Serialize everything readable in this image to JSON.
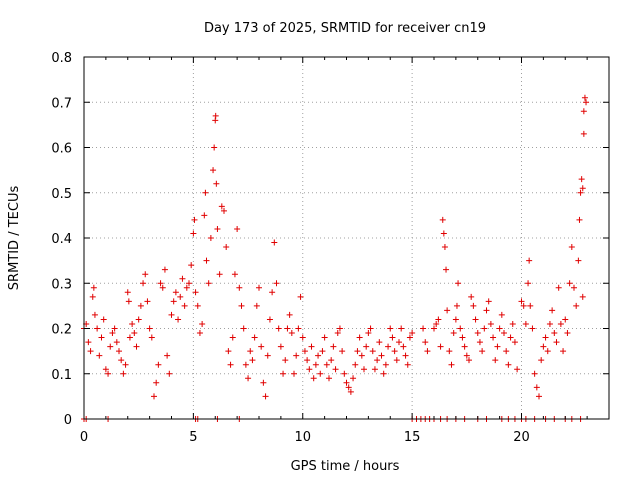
{
  "chart_data": {
    "type": "scatter",
    "title": "Day 173 of 2025, SRMTID for receiver cn19",
    "xlabel": "GPS time / hours",
    "ylabel": "SRMTID / TECUs",
    "xlim": [
      0,
      24
    ],
    "ylim": [
      0,
      0.8
    ],
    "xticks": [
      0,
      5,
      10,
      15,
      20
    ],
    "yticks": [
      0,
      0.1,
      0.2,
      0.3,
      0.4,
      0.5,
      0.6,
      0.7,
      0.8
    ],
    "xtick_labels": [
      "0",
      "5",
      "10",
      "15",
      "20"
    ],
    "ytick_labels": [
      "0",
      "0.1",
      "0.2",
      "0.3",
      "0.4",
      "0.5",
      "0.6",
      "0.7",
      "0.8"
    ],
    "grid": true,
    "marker": "+",
    "color": "#e00000",
    "series": [
      {
        "name": "SRMTID",
        "points": [
          [
            0.0,
            0.2
          ],
          [
            0.1,
            0.21
          ],
          [
            0.2,
            0.17
          ],
          [
            0.3,
            0.15
          ],
          [
            0.4,
            0.27
          ],
          [
            0.45,
            0.29
          ],
          [
            0.5,
            0.23
          ],
          [
            0.6,
            0.2
          ],
          [
            0.7,
            0.14
          ],
          [
            0.8,
            0.18
          ],
          [
            0.9,
            0.22
          ],
          [
            1.0,
            0.11
          ],
          [
            1.1,
            0.1
          ],
          [
            1.2,
            0.16
          ],
          [
            1.3,
            0.19
          ],
          [
            1.4,
            0.2
          ],
          [
            1.5,
            0.17
          ],
          [
            1.6,
            0.15
          ],
          [
            1.7,
            0.13
          ],
          [
            1.8,
            0.1
          ],
          [
            1.9,
            0.12
          ],
          [
            2.0,
            0.28
          ],
          [
            2.05,
            0.26
          ],
          [
            2.1,
            0.18
          ],
          [
            2.2,
            0.21
          ],
          [
            2.3,
            0.19
          ],
          [
            2.4,
            0.16
          ],
          [
            2.5,
            0.22
          ],
          [
            2.6,
            0.25
          ],
          [
            2.7,
            0.3
          ],
          [
            2.8,
            0.32
          ],
          [
            2.9,
            0.26
          ],
          [
            3.0,
            0.2
          ],
          [
            3.1,
            0.18
          ],
          [
            3.2,
            0.05
          ],
          [
            3.3,
            0.08
          ],
          [
            3.4,
            0.12
          ],
          [
            3.5,
            0.3
          ],
          [
            3.6,
            0.29
          ],
          [
            3.7,
            0.33
          ],
          [
            3.8,
            0.14
          ],
          [
            3.9,
            0.1
          ],
          [
            4.0,
            0.23
          ],
          [
            4.1,
            0.26
          ],
          [
            4.2,
            0.28
          ],
          [
            4.3,
            0.22
          ],
          [
            4.4,
            0.27
          ],
          [
            4.5,
            0.31
          ],
          [
            4.6,
            0.25
          ],
          [
            4.7,
            0.29
          ],
          [
            4.8,
            0.3
          ],
          [
            4.9,
            0.34
          ],
          [
            5.0,
            0.41
          ],
          [
            5.05,
            0.44
          ],
          [
            5.1,
            0.28
          ],
          [
            5.2,
            0.25
          ],
          [
            5.3,
            0.19
          ],
          [
            5.4,
            0.21
          ],
          [
            5.5,
            0.45
          ],
          [
            5.55,
            0.5
          ],
          [
            5.6,
            0.35
          ],
          [
            5.7,
            0.3
          ],
          [
            5.8,
            0.4
          ],
          [
            5.9,
            0.55
          ],
          [
            5.95,
            0.6
          ],
          [
            6.0,
            0.66
          ],
          [
            6.02,
            0.67
          ],
          [
            6.05,
            0.52
          ],
          [
            6.1,
            0.42
          ],
          [
            6.2,
            0.32
          ],
          [
            6.3,
            0.47
          ],
          [
            6.4,
            0.46
          ],
          [
            6.5,
            0.38
          ],
          [
            6.6,
            0.15
          ],
          [
            6.7,
            0.12
          ],
          [
            6.8,
            0.18
          ],
          [
            6.9,
            0.32
          ],
          [
            7.0,
            0.42
          ],
          [
            7.1,
            0.29
          ],
          [
            7.2,
            0.25
          ],
          [
            7.3,
            0.2
          ],
          [
            7.4,
            0.12
          ],
          [
            7.5,
            0.09
          ],
          [
            7.6,
            0.15
          ],
          [
            7.7,
            0.13
          ],
          [
            7.8,
            0.18
          ],
          [
            7.9,
            0.25
          ],
          [
            8.0,
            0.29
          ],
          [
            8.1,
            0.16
          ],
          [
            8.2,
            0.08
          ],
          [
            8.3,
            0.05
          ],
          [
            8.4,
            0.14
          ],
          [
            8.5,
            0.22
          ],
          [
            8.6,
            0.28
          ],
          [
            8.7,
            0.39
          ],
          [
            8.8,
            0.3
          ],
          [
            8.9,
            0.2
          ],
          [
            9.0,
            0.16
          ],
          [
            9.1,
            0.1
          ],
          [
            9.2,
            0.13
          ],
          [
            9.3,
            0.2
          ],
          [
            9.4,
            0.23
          ],
          [
            9.5,
            0.19
          ],
          [
            9.6,
            0.1
          ],
          [
            9.7,
            0.14
          ],
          [
            9.8,
            0.2
          ],
          [
            9.9,
            0.27
          ],
          [
            10.0,
            0.18
          ],
          [
            10.1,
            0.15
          ],
          [
            10.2,
            0.13
          ],
          [
            10.3,
            0.11
          ],
          [
            10.4,
            0.16
          ],
          [
            10.5,
            0.09
          ],
          [
            10.6,
            0.12
          ],
          [
            10.7,
            0.14
          ],
          [
            10.8,
            0.1
          ],
          [
            10.9,
            0.15
          ],
          [
            11.0,
            0.18
          ],
          [
            11.1,
            0.12
          ],
          [
            11.2,
            0.09
          ],
          [
            11.3,
            0.13
          ],
          [
            11.4,
            0.16
          ],
          [
            11.5,
            0.11
          ],
          [
            11.6,
            0.19
          ],
          [
            11.7,
            0.2
          ],
          [
            11.8,
            0.15
          ],
          [
            11.9,
            0.1
          ],
          [
            12.0,
            0.08
          ],
          [
            12.1,
            0.07
          ],
          [
            12.2,
            0.06
          ],
          [
            12.3,
            0.09
          ],
          [
            12.4,
            0.12
          ],
          [
            12.5,
            0.15
          ],
          [
            12.6,
            0.18
          ],
          [
            12.7,
            0.14
          ],
          [
            12.8,
            0.11
          ],
          [
            12.9,
            0.16
          ],
          [
            13.0,
            0.19
          ],
          [
            13.1,
            0.2
          ],
          [
            13.2,
            0.15
          ],
          [
            13.3,
            0.11
          ],
          [
            13.4,
            0.13
          ],
          [
            13.5,
            0.17
          ],
          [
            13.6,
            0.14
          ],
          [
            13.7,
            0.1
          ],
          [
            13.8,
            0.12
          ],
          [
            13.9,
            0.16
          ],
          [
            14.0,
            0.2
          ],
          [
            14.1,
            0.18
          ],
          [
            14.2,
            0.15
          ],
          [
            14.3,
            0.13
          ],
          [
            14.4,
            0.17
          ],
          [
            14.5,
            0.2
          ],
          [
            14.6,
            0.16
          ],
          [
            14.7,
            0.14
          ],
          [
            14.8,
            0.12
          ],
          [
            14.9,
            0.18
          ],
          [
            15.0,
            0.19
          ],
          [
            15.5,
            0.2
          ],
          [
            15.6,
            0.17
          ],
          [
            15.7,
            0.15
          ],
          [
            16.0,
            0.2
          ],
          [
            16.1,
            0.21
          ],
          [
            16.2,
            0.22
          ],
          [
            16.3,
            0.16
          ],
          [
            16.4,
            0.44
          ],
          [
            16.45,
            0.41
          ],
          [
            16.5,
            0.38
          ],
          [
            16.55,
            0.33
          ],
          [
            16.6,
            0.24
          ],
          [
            16.7,
            0.15
          ],
          [
            16.8,
            0.12
          ],
          [
            16.9,
            0.19
          ],
          [
            17.0,
            0.22
          ],
          [
            17.05,
            0.25
          ],
          [
            17.1,
            0.3
          ],
          [
            17.2,
            0.2
          ],
          [
            17.3,
            0.18
          ],
          [
            17.4,
            0.16
          ],
          [
            17.5,
            0.14
          ],
          [
            17.6,
            0.13
          ],
          [
            17.7,
            0.27
          ],
          [
            17.8,
            0.25
          ],
          [
            17.9,
            0.22
          ],
          [
            18.0,
            0.19
          ],
          [
            18.1,
            0.17
          ],
          [
            18.2,
            0.15
          ],
          [
            18.3,
            0.2
          ],
          [
            18.4,
            0.24
          ],
          [
            18.5,
            0.26
          ],
          [
            18.6,
            0.21
          ],
          [
            18.7,
            0.18
          ],
          [
            18.8,
            0.13
          ],
          [
            18.9,
            0.16
          ],
          [
            19.0,
            0.2
          ],
          [
            19.1,
            0.23
          ],
          [
            19.2,
            0.19
          ],
          [
            19.3,
            0.15
          ],
          [
            19.4,
            0.12
          ],
          [
            19.5,
            0.18
          ],
          [
            19.6,
            0.21
          ],
          [
            19.7,
            0.17
          ],
          [
            19.8,
            0.11
          ],
          [
            20.0,
            0.26
          ],
          [
            20.1,
            0.25
          ],
          [
            20.2,
            0.21
          ],
          [
            20.3,
            0.3
          ],
          [
            20.35,
            0.35
          ],
          [
            20.4,
            0.25
          ],
          [
            20.5,
            0.2
          ],
          [
            20.6,
            0.1
          ],
          [
            20.7,
            0.07
          ],
          [
            20.8,
            0.05
          ],
          [
            20.9,
            0.13
          ],
          [
            21.0,
            0.16
          ],
          [
            21.1,
            0.18
          ],
          [
            21.2,
            0.15
          ],
          [
            21.3,
            0.21
          ],
          [
            21.4,
            0.24
          ],
          [
            21.5,
            0.19
          ],
          [
            21.6,
            0.17
          ],
          [
            21.7,
            0.29
          ],
          [
            21.8,
            0.21
          ],
          [
            21.9,
            0.15
          ],
          [
            22.0,
            0.22
          ],
          [
            22.1,
            0.19
          ],
          [
            22.2,
            0.3
          ],
          [
            22.3,
            0.38
          ],
          [
            22.4,
            0.29
          ],
          [
            22.5,
            0.25
          ],
          [
            22.6,
            0.35
          ],
          [
            22.65,
            0.44
          ],
          [
            22.7,
            0.5
          ],
          [
            22.75,
            0.53
          ],
          [
            22.8,
            0.51
          ],
          [
            22.85,
            0.68
          ],
          [
            22.9,
            0.71
          ],
          [
            22.95,
            0.7
          ],
          [
            22.85,
            0.63
          ],
          [
            22.8,
            0.27
          ],
          [
            0.0,
            0.0
          ],
          [
            0.1,
            0.0
          ],
          [
            1.1,
            0.0
          ],
          [
            5.1,
            0.0
          ],
          [
            5.2,
            0.0
          ],
          [
            6.1,
            0.0
          ],
          [
            7.1,
            0.0
          ],
          [
            15.0,
            0.0
          ],
          [
            15.2,
            0.0
          ],
          [
            15.4,
            0.0
          ],
          [
            15.6,
            0.0
          ],
          [
            15.8,
            0.0
          ],
          [
            16.0,
            0.0
          ],
          [
            16.3,
            0.0
          ],
          [
            16.6,
            0.0
          ],
          [
            17.0,
            0.0
          ],
          [
            17.4,
            0.0
          ],
          [
            18.0,
            0.0
          ],
          [
            18.4,
            0.0
          ],
          [
            19.1,
            0.0
          ],
          [
            19.4,
            0.0
          ],
          [
            19.7,
            0.0
          ],
          [
            20.0,
            0.0
          ],
          [
            20.2,
            0.0
          ],
          [
            20.6,
            0.0
          ],
          [
            21.1,
            0.0
          ],
          [
            21.5,
            0.0
          ],
          [
            22.0,
            0.0
          ],
          [
            22.3,
            0.0
          ],
          [
            22.7,
            0.0
          ]
        ]
      }
    ]
  }
}
